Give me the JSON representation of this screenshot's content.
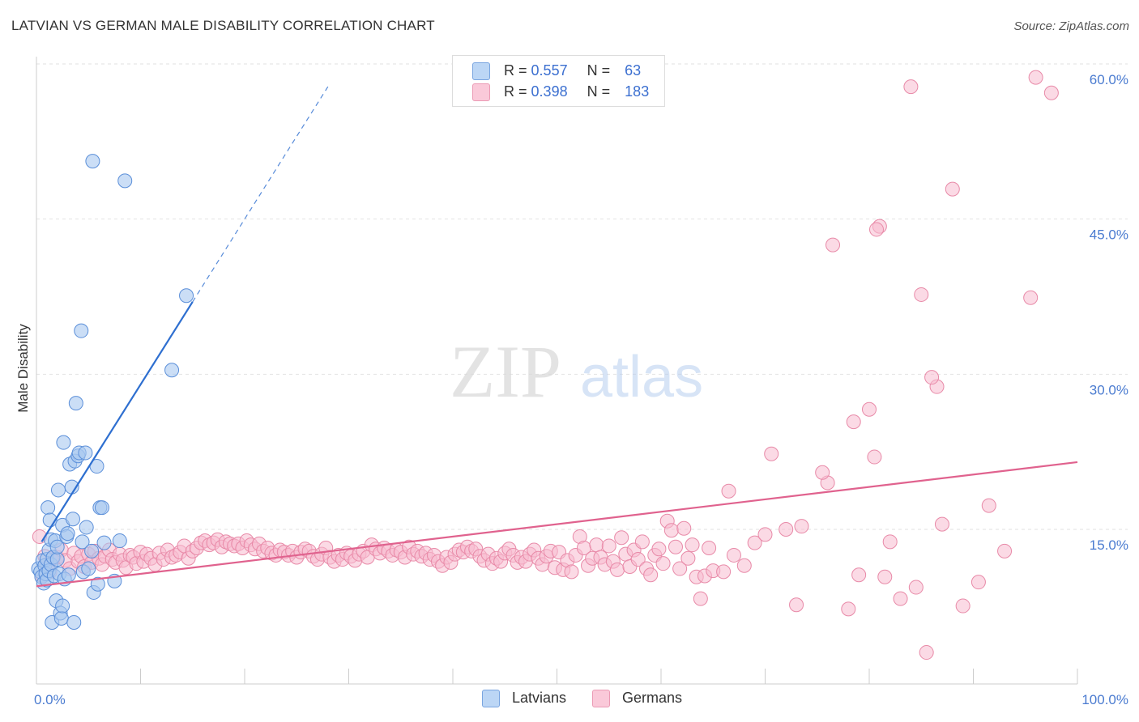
{
  "title": "LATVIAN VS GERMAN MALE DISABILITY CORRELATION CHART",
  "source": "Source: ZipAtlas.com",
  "watermark": {
    "zip": "ZIP",
    "atlas": "atlas"
  },
  "legend": {
    "rows": [
      {
        "r_label": "R =",
        "r_value": "0.557",
        "n_label": "N =",
        "n_value": "63"
      },
      {
        "r_label": "R =",
        "r_value": "0.398",
        "n_label": "N =",
        "n_value": "183"
      }
    ]
  },
  "bottom_legend": {
    "latvians": "Latvians",
    "germans": "Germans"
  },
  "colors": {
    "latvians_fill": "#a8c8f0",
    "latvians_stroke": "#5b8fd9",
    "latvians_line": "#2e6fd0",
    "germans_fill": "#f8bcd0",
    "germans_stroke": "#e88aa8",
    "germans_line": "#e0628e",
    "tick_text": "#4a7bd0"
  },
  "chart_data": {
    "type": "scatter",
    "title": "LATVIAN VS GERMAN MALE DISABILITY CORRELATION CHART",
    "xlabel": "",
    "ylabel": "Male Disability",
    "xlim": [
      0,
      100
    ],
    "ylim": [
      0,
      61
    ],
    "x_tick_labels": [
      "0.0%",
      "100.0%"
    ],
    "y_ticks": [
      15,
      30,
      45,
      60
    ],
    "y_tick_labels": [
      "15.0%",
      "30.0%",
      "45.0%",
      "60.0%"
    ],
    "grid": "horizontal dashed",
    "legend_position": "top-center",
    "series": [
      {
        "name": "Latvians",
        "R": 0.557,
        "N": 63,
        "trend": {
          "x0": 0.5,
          "y0": 13.8,
          "x1": 15.0,
          "y1": 37.0,
          "x_dash_end": 28.0
        },
        "points": [
          [
            0.2,
            11.2
          ],
          [
            0.4,
            10.9
          ],
          [
            0.5,
            10.4
          ],
          [
            0.6,
            12.0
          ],
          [
            0.7,
            9.8
          ],
          [
            0.8,
            11.5
          ],
          [
            0.9,
            10.7
          ],
          [
            1.0,
            12.1
          ],
          [
            1.0,
            10.1
          ],
          [
            1.1,
            17.1
          ],
          [
            1.2,
            11.0
          ],
          [
            1.2,
            13.0
          ],
          [
            1.3,
            15.9
          ],
          [
            1.4,
            14.0
          ],
          [
            1.4,
            11.6
          ],
          [
            1.5,
            6.0
          ],
          [
            1.6,
            12.3
          ],
          [
            1.7,
            10.5
          ],
          [
            1.8,
            13.9
          ],
          [
            1.9,
            8.1
          ],
          [
            2.0,
            12.1
          ],
          [
            2.0,
            13.3
          ],
          [
            2.1,
            18.8
          ],
          [
            2.2,
            10.7
          ],
          [
            2.3,
            6.9
          ],
          [
            2.4,
            6.4
          ],
          [
            2.5,
            15.4
          ],
          [
            2.5,
            7.6
          ],
          [
            2.6,
            23.4
          ],
          [
            2.7,
            10.2
          ],
          [
            2.9,
            14.3
          ],
          [
            3.0,
            14.6
          ],
          [
            3.1,
            10.6
          ],
          [
            3.2,
            21.3
          ],
          [
            3.4,
            19.1
          ],
          [
            3.5,
            16.0
          ],
          [
            3.6,
            6.0
          ],
          [
            3.7,
            21.6
          ],
          [
            3.8,
            27.2
          ],
          [
            4.0,
            22.1
          ],
          [
            4.1,
            22.4
          ],
          [
            4.3,
            34.2
          ],
          [
            4.4,
            13.8
          ],
          [
            4.5,
            10.9
          ],
          [
            4.7,
            22.4
          ],
          [
            4.8,
            15.2
          ],
          [
            5.0,
            11.2
          ],
          [
            5.3,
            12.9
          ],
          [
            5.5,
            8.9
          ],
          [
            5.4,
            50.6
          ],
          [
            5.8,
            21.1
          ],
          [
            5.9,
            9.7
          ],
          [
            6.1,
            17.1
          ],
          [
            6.3,
            17.1
          ],
          [
            6.5,
            13.7
          ],
          [
            7.5,
            10.0
          ],
          [
            8.0,
            13.9
          ],
          [
            8.5,
            48.7
          ],
          [
            13.0,
            30.4
          ],
          [
            14.4,
            37.6
          ]
        ]
      },
      {
        "name": "Germans",
        "R": 0.398,
        "N": 183,
        "trend": {
          "x0": 0.0,
          "y0": 9.5,
          "x1": 100.0,
          "y1": 21.5
        },
        "points": [
          [
            0.3,
            14.3
          ],
          [
            0.6,
            10.5
          ],
          [
            0.8,
            12.4
          ],
          [
            1.0,
            11.6
          ],
          [
            1.3,
            10.9
          ],
          [
            1.6,
            12.2
          ],
          [
            2.0,
            12.3
          ],
          [
            2.4,
            13.0
          ],
          [
            2.8,
            12.0
          ],
          [
            3.2,
            11.2
          ],
          [
            3.6,
            12.7
          ],
          [
            4.0,
            11.9
          ],
          [
            4.3,
            12.4
          ],
          [
            4.6,
            11.4
          ],
          [
            5.0,
            12.6
          ],
          [
            5.3,
            11.8
          ],
          [
            5.6,
            12.9
          ],
          [
            6.0,
            12.2
          ],
          [
            6.3,
            11.6
          ],
          [
            6.6,
            12.4
          ],
          [
            7.0,
            13.0
          ],
          [
            7.3,
            12.1
          ],
          [
            7.6,
            11.8
          ],
          [
            8.0,
            12.6
          ],
          [
            8.3,
            12.0
          ],
          [
            8.6,
            11.3
          ],
          [
            9.0,
            12.5
          ],
          [
            9.3,
            12.3
          ],
          [
            9.6,
            11.7
          ],
          [
            10.0,
            12.8
          ],
          [
            10.3,
            11.9
          ],
          [
            10.6,
            12.6
          ],
          [
            11.0,
            12.2
          ],
          [
            11.4,
            11.6
          ],
          [
            11.8,
            12.7
          ],
          [
            12.2,
            12.1
          ],
          [
            12.6,
            13.0
          ],
          [
            13.0,
            12.3
          ],
          [
            13.4,
            12.5
          ],
          [
            13.8,
            12.8
          ],
          [
            14.2,
            13.4
          ],
          [
            14.6,
            12.2
          ],
          [
            15.0,
            12.9
          ],
          [
            15.4,
            13.2
          ],
          [
            15.8,
            13.7
          ],
          [
            16.2,
            13.9
          ],
          [
            16.6,
            13.5
          ],
          [
            17.0,
            13.7
          ],
          [
            17.4,
            14.0
          ],
          [
            17.8,
            13.3
          ],
          [
            18.2,
            13.8
          ],
          [
            18.6,
            13.6
          ],
          [
            19.0,
            13.4
          ],
          [
            19.4,
            13.6
          ],
          [
            19.8,
            13.2
          ],
          [
            20.2,
            13.9
          ],
          [
            20.6,
            13.5
          ],
          [
            21.0,
            13.1
          ],
          [
            21.4,
            13.6
          ],
          [
            21.8,
            12.9
          ],
          [
            22.2,
            13.2
          ],
          [
            22.6,
            12.7
          ],
          [
            23.0,
            12.5
          ],
          [
            23.4,
            13.0
          ],
          [
            23.8,
            12.8
          ],
          [
            24.2,
            12.5
          ],
          [
            24.6,
            12.9
          ],
          [
            25.0,
            12.3
          ],
          [
            25.4,
            12.8
          ],
          [
            25.8,
            13.1
          ],
          [
            26.2,
            12.9
          ],
          [
            26.6,
            12.4
          ],
          [
            27.0,
            12.1
          ],
          [
            27.4,
            12.6
          ],
          [
            27.8,
            13.2
          ],
          [
            28.2,
            12.3
          ],
          [
            28.6,
            11.9
          ],
          [
            29.0,
            12.5
          ],
          [
            29.4,
            12.1
          ],
          [
            29.8,
            12.7
          ],
          [
            30.2,
            12.4
          ],
          [
            30.6,
            12.0
          ],
          [
            31.0,
            12.6
          ],
          [
            31.4,
            12.9
          ],
          [
            31.8,
            12.3
          ],
          [
            32.2,
            13.5
          ],
          [
            32.6,
            13.1
          ],
          [
            33.0,
            12.7
          ],
          [
            33.4,
            13.2
          ],
          [
            33.8,
            12.9
          ],
          [
            34.2,
            12.5
          ],
          [
            34.6,
            13.0
          ],
          [
            35.0,
            12.8
          ],
          [
            35.4,
            12.3
          ],
          [
            35.8,
            13.3
          ],
          [
            36.2,
            12.6
          ],
          [
            36.6,
            12.9
          ],
          [
            37.0,
            12.4
          ],
          [
            37.4,
            12.7
          ],
          [
            37.8,
            12.1
          ],
          [
            38.2,
            12.5
          ],
          [
            38.6,
            11.9
          ],
          [
            39.0,
            11.5
          ],
          [
            39.4,
            12.3
          ],
          [
            39.8,
            11.8
          ],
          [
            40.2,
            12.6
          ],
          [
            40.6,
            13.0
          ],
          [
            41.0,
            12.8
          ],
          [
            41.4,
            13.3
          ],
          [
            41.8,
            12.9
          ],
          [
            42.2,
            13.1
          ],
          [
            42.6,
            12.4
          ],
          [
            43.0,
            12.0
          ],
          [
            43.4,
            12.6
          ],
          [
            43.8,
            11.7
          ],
          [
            44.2,
            12.2
          ],
          [
            44.6,
            11.9
          ],
          [
            45.0,
            12.7
          ],
          [
            45.4,
            13.1
          ],
          [
            45.8,
            12.5
          ],
          [
            46.2,
            11.8
          ],
          [
            46.6,
            12.3
          ],
          [
            47.0,
            11.9
          ],
          [
            47.4,
            12.6
          ],
          [
            47.8,
            13.0
          ],
          [
            48.2,
            12.2
          ],
          [
            48.6,
            11.6
          ],
          [
            49.0,
            12.4
          ],
          [
            49.4,
            12.9
          ],
          [
            49.8,
            11.3
          ],
          [
            50.2,
            12.8
          ],
          [
            50.6,
            11.1
          ],
          [
            51.0,
            12.0
          ],
          [
            51.4,
            10.9
          ],
          [
            51.8,
            12.5
          ],
          [
            52.2,
            14.3
          ],
          [
            52.6,
            13.2
          ],
          [
            53.0,
            11.5
          ],
          [
            53.4,
            12.2
          ],
          [
            53.8,
            13.5
          ],
          [
            54.2,
            12.3
          ],
          [
            54.6,
            11.6
          ],
          [
            55.0,
            13.4
          ],
          [
            55.4,
            11.9
          ],
          [
            55.8,
            11.1
          ],
          [
            56.2,
            14.2
          ],
          [
            56.6,
            12.6
          ],
          [
            57.0,
            11.4
          ],
          [
            57.4,
            13.0
          ],
          [
            57.8,
            12.1
          ],
          [
            58.2,
            13.8
          ],
          [
            58.6,
            11.2
          ],
          [
            59.0,
            10.6
          ],
          [
            59.4,
            12.5
          ],
          [
            59.8,
            13.1
          ],
          [
            60.2,
            11.7
          ],
          [
            60.6,
            15.8
          ],
          [
            61.0,
            14.9
          ],
          [
            61.4,
            13.3
          ],
          [
            61.8,
            11.2
          ],
          [
            62.2,
            15.1
          ],
          [
            62.6,
            12.2
          ],
          [
            63.0,
            13.5
          ],
          [
            63.4,
            10.4
          ],
          [
            63.8,
            8.3
          ],
          [
            64.2,
            10.5
          ],
          [
            64.6,
            13.2
          ],
          [
            65.0,
            11.0
          ],
          [
            66.0,
            10.9
          ],
          [
            66.5,
            18.7
          ],
          [
            67.0,
            12.5
          ],
          [
            68.0,
            11.5
          ],
          [
            69.0,
            13.7
          ],
          [
            70.0,
            14.5
          ],
          [
            70.6,
            22.3
          ],
          [
            72.0,
            15.0
          ],
          [
            73.0,
            7.7
          ],
          [
            76.0,
            19.5
          ],
          [
            78.0,
            7.3
          ],
          [
            79.0,
            10.6
          ],
          [
            80.5,
            22.0
          ],
          [
            81.5,
            10.4
          ],
          [
            83.0,
            8.3
          ],
          [
            84.5,
            9.4
          ],
          [
            85.0,
            37.7
          ],
          [
            86.5,
            28.8
          ],
          [
            88.0,
            47.9
          ],
          [
            89.0,
            7.6
          ],
          [
            90.5,
            9.9
          ],
          [
            91.5,
            17.3
          ],
          [
            93.0,
            12.9
          ],
          [
            95.5,
            37.4
          ],
          [
            96.0,
            58.7
          ],
          [
            97.5,
            57.2
          ],
          [
            84.0,
            57.8
          ],
          [
            81.0,
            44.3
          ],
          [
            80.7,
            44.0
          ],
          [
            76.5,
            42.5
          ],
          [
            86.0,
            29.7
          ],
          [
            80.0,
            26.6
          ],
          [
            78.5,
            25.4
          ],
          [
            75.5,
            20.5
          ],
          [
            73.5,
            15.3
          ],
          [
            82.0,
            13.8
          ],
          [
            85.5,
            3.1
          ],
          [
            87.0,
            15.5
          ]
        ]
      }
    ]
  }
}
